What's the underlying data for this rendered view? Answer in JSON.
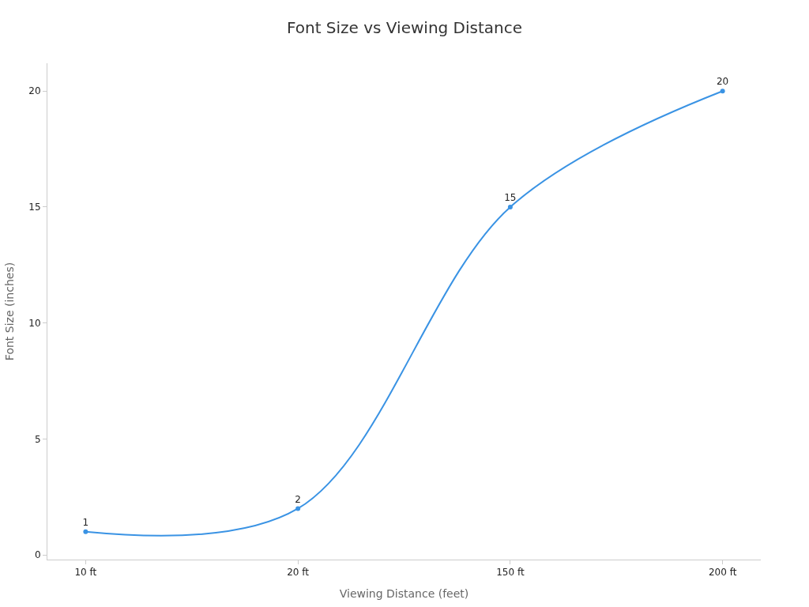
{
  "chart_data": {
    "type": "line",
    "title": "Font Size vs Viewing Distance",
    "xlabel": "Viewing Distance (feet)",
    "ylabel": "Font Size (inches)",
    "categories": [
      "10 ft",
      "20 ft",
      "150 ft",
      "200 ft"
    ],
    "series": [
      {
        "color": "#3a93e4",
        "values": [
          1,
          2,
          15,
          20
        ]
      }
    ],
    "ylim": [
      -0.2,
      21.2
    ],
    "yticks": [
      0,
      5,
      10,
      15,
      20
    ],
    "marker": "circle",
    "line_style": "solid",
    "data_labels": true
  }
}
